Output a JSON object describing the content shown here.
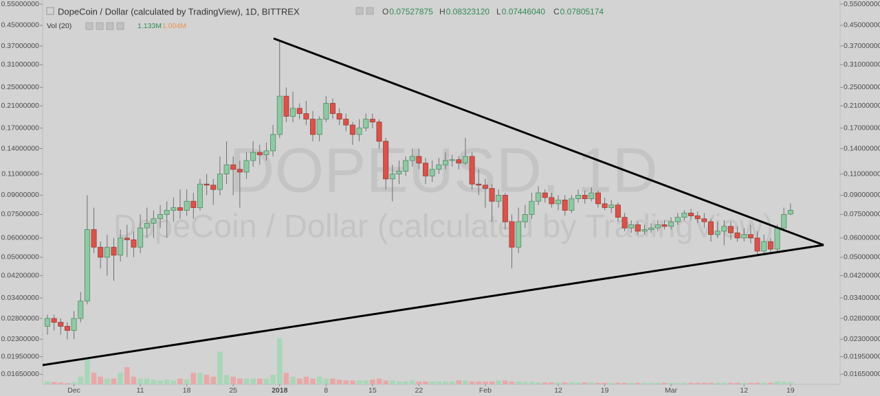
{
  "chart_data": {
    "type": "candlestick",
    "title": "DopeCoin / Dollar (calculated by TradingView), 1D, BITTREX",
    "watermark": "DOPEUSD, 1D",
    "watermark_subtitle": "DopeCoin / Dollar (calculated by TradingView)",
    "ohlc_prefixes": [
      "O",
      "H",
      "L",
      "C"
    ],
    "ohlc_labels": [
      "0.07527875",
      "0.08323120",
      "0.07446040",
      "0.07805174"
    ],
    "log_scale": true,
    "grid": false,
    "up_color": "#8fc9a3",
    "down_color": "#d9534a",
    "ylim": [
      0.015,
      0.572
    ],
    "yticks": [
      {
        "value": 0.55,
        "label": "0.55000000"
      },
      {
        "value": 0.45,
        "label": "0.45000000"
      },
      {
        "value": 0.37,
        "label": "0.37000000"
      },
      {
        "value": 0.31,
        "label": "0.31000000"
      },
      {
        "value": 0.25,
        "label": "0.25000000"
      },
      {
        "value": 0.21,
        "label": "0.21000000"
      },
      {
        "value": 0.17,
        "label": "0.17000000"
      },
      {
        "value": 0.14,
        "label": "0.14000000"
      },
      {
        "value": 0.11,
        "label": "0.11000000"
      },
      {
        "value": 0.09,
        "label": "0.09000000"
      },
      {
        "value": 0.075,
        "label": "0.07500000"
      },
      {
        "value": 0.06,
        "label": "0.06000000"
      },
      {
        "value": 0.05,
        "label": "0.05000000"
      },
      {
        "value": 0.042,
        "label": "0.04200000"
      },
      {
        "value": 0.034,
        "label": "0.03400000"
      },
      {
        "value": 0.028,
        "label": "0.02800000"
      },
      {
        "value": 0.023,
        "label": "0.02300000"
      },
      {
        "value": 0.0195,
        "label": "0.01950000"
      },
      {
        "value": 0.0165,
        "label": "0.01650000"
      }
    ],
    "categories": [
      null,
      null,
      null,
      null,
      "Dec",
      null,
      null,
      null,
      null,
      null,
      null,
      null,
      null,
      null,
      "11",
      null,
      null,
      null,
      null,
      null,
      null,
      "18",
      null,
      null,
      null,
      null,
      null,
      null,
      "25",
      null,
      null,
      null,
      null,
      null,
      null,
      "2018",
      null,
      null,
      null,
      null,
      null,
      null,
      "8",
      null,
      null,
      null,
      null,
      null,
      null,
      "15",
      null,
      null,
      null,
      null,
      null,
      null,
      "22",
      null,
      null,
      null,
      null,
      null,
      null,
      null,
      null,
      null,
      "Feb",
      null,
      null,
      null,
      null,
      null,
      null,
      null,
      null,
      null,
      null,
      "12",
      null,
      null,
      null,
      null,
      null,
      null,
      "19",
      null,
      null,
      null,
      null,
      null,
      null,
      null,
      null,
      null,
      "Mar",
      null,
      null,
      null,
      null,
      null,
      null,
      null,
      null,
      null,
      null,
      "12",
      null,
      null,
      null,
      null,
      null,
      null,
      "19"
    ],
    "candles": [
      [
        0.026,
        0.029,
        0.024,
        0.028
      ],
      [
        0.028,
        0.029,
        0.025,
        0.027
      ],
      [
        0.027,
        0.028,
        0.024,
        0.026
      ],
      [
        0.026,
        0.027,
        0.023,
        0.025
      ],
      [
        0.025,
        0.03,
        0.023,
        0.028
      ],
      [
        0.028,
        0.036,
        0.027,
        0.033
      ],
      [
        0.033,
        0.09,
        0.032,
        0.065
      ],
      [
        0.065,
        0.08,
        0.052,
        0.055
      ],
      [
        0.055,
        0.058,
        0.045,
        0.05
      ],
      [
        0.05,
        0.062,
        0.042,
        0.055
      ],
      [
        0.055,
        0.06,
        0.04,
        0.051
      ],
      [
        0.051,
        0.065,
        0.048,
        0.06
      ],
      [
        0.06,
        0.068,
        0.05,
        0.059
      ],
      [
        0.059,
        0.064,
        0.05,
        0.055
      ],
      [
        0.055,
        0.075,
        0.052,
        0.066
      ],
      [
        0.066,
        0.08,
        0.06,
        0.069
      ],
      [
        0.069,
        0.078,
        0.06,
        0.072
      ],
      [
        0.072,
        0.082,
        0.066,
        0.075
      ],
      [
        0.075,
        0.085,
        0.06,
        0.078
      ],
      [
        0.078,
        0.088,
        0.07,
        0.08
      ],
      [
        0.08,
        0.095,
        0.072,
        0.078
      ],
      [
        0.078,
        0.095,
        0.074,
        0.085
      ],
      [
        0.085,
        0.092,
        0.072,
        0.08
      ],
      [
        0.08,
        0.105,
        0.078,
        0.1
      ],
      [
        0.1,
        0.11,
        0.09,
        0.099
      ],
      [
        0.099,
        0.105,
        0.082,
        0.095
      ],
      [
        0.095,
        0.13,
        0.09,
        0.11
      ],
      [
        0.11,
        0.15,
        0.1,
        0.12
      ],
      [
        0.12,
        0.13,
        0.09,
        0.115
      ],
      [
        0.115,
        0.125,
        0.08,
        0.112
      ],
      [
        0.112,
        0.135,
        0.105,
        0.125
      ],
      [
        0.125,
        0.15,
        0.118,
        0.135
      ],
      [
        0.135,
        0.145,
        0.12,
        0.132
      ],
      [
        0.132,
        0.148,
        0.125,
        0.137
      ],
      [
        0.137,
        0.175,
        0.13,
        0.16
      ],
      [
        0.16,
        0.39,
        0.155,
        0.23
      ],
      [
        0.23,
        0.25,
        0.18,
        0.19
      ],
      [
        0.19,
        0.24,
        0.18,
        0.205
      ],
      [
        0.205,
        0.215,
        0.185,
        0.195
      ],
      [
        0.195,
        0.22,
        0.175,
        0.185
      ],
      [
        0.185,
        0.2,
        0.15,
        0.16
      ],
      [
        0.16,
        0.19,
        0.15,
        0.185
      ],
      [
        0.185,
        0.23,
        0.18,
        0.215
      ],
      [
        0.215,
        0.225,
        0.185,
        0.195
      ],
      [
        0.195,
        0.205,
        0.175,
        0.185
      ],
      [
        0.185,
        0.195,
        0.165,
        0.175
      ],
      [
        0.175,
        0.18,
        0.145,
        0.16
      ],
      [
        0.16,
        0.185,
        0.15,
        0.17
      ],
      [
        0.17,
        0.195,
        0.165,
        0.185
      ],
      [
        0.185,
        0.195,
        0.17,
        0.18
      ],
      [
        0.18,
        0.185,
        0.14,
        0.15
      ],
      [
        0.15,
        0.155,
        0.095,
        0.105
      ],
      [
        0.105,
        0.12,
        0.085,
        0.11
      ],
      [
        0.11,
        0.125,
        0.1,
        0.113
      ],
      [
        0.113,
        0.13,
        0.108,
        0.125
      ],
      [
        0.125,
        0.14,
        0.118,
        0.13
      ],
      [
        0.13,
        0.14,
        0.115,
        0.122
      ],
      [
        0.122,
        0.128,
        0.1,
        0.108
      ],
      [
        0.108,
        0.125,
        0.102,
        0.115
      ],
      [
        0.115,
        0.128,
        0.11,
        0.12
      ],
      [
        0.12,
        0.135,
        0.115,
        0.125
      ],
      [
        0.125,
        0.132,
        0.118,
        0.126
      ],
      [
        0.126,
        0.13,
        0.115,
        0.122
      ],
      [
        0.122,
        0.155,
        0.12,
        0.13
      ],
      [
        0.13,
        0.135,
        0.095,
        0.1
      ],
      [
        0.1,
        0.115,
        0.09,
        0.099
      ],
      [
        0.099,
        0.105,
        0.08,
        0.096
      ],
      [
        0.096,
        0.1,
        0.07,
        0.085
      ],
      [
        0.085,
        0.095,
        0.08,
        0.09
      ],
      [
        0.09,
        0.092,
        0.065,
        0.07
      ],
      [
        0.07,
        0.075,
        0.045,
        0.055
      ],
      [
        0.055,
        0.08,
        0.052,
        0.07
      ],
      [
        0.07,
        0.082,
        0.066,
        0.075
      ],
      [
        0.075,
        0.092,
        0.072,
        0.085
      ],
      [
        0.085,
        0.098,
        0.082,
        0.092
      ],
      [
        0.092,
        0.095,
        0.084,
        0.088
      ],
      [
        0.088,
        0.092,
        0.08,
        0.083
      ],
      [
        0.083,
        0.09,
        0.078,
        0.086
      ],
      [
        0.086,
        0.09,
        0.074,
        0.078
      ],
      [
        0.078,
        0.09,
        0.076,
        0.087
      ],
      [
        0.087,
        0.095,
        0.084,
        0.09
      ],
      [
        0.09,
        0.094,
        0.083,
        0.087
      ],
      [
        0.087,
        0.097,
        0.085,
        0.092
      ],
      [
        0.092,
        0.094,
        0.08,
        0.083
      ],
      [
        0.083,
        0.088,
        0.078,
        0.08
      ],
      [
        0.08,
        0.086,
        0.076,
        0.082
      ],
      [
        0.082,
        0.084,
        0.07,
        0.073
      ],
      [
        0.073,
        0.076,
        0.064,
        0.066
      ],
      [
        0.066,
        0.071,
        0.063,
        0.068
      ],
      [
        0.068,
        0.07,
        0.062,
        0.064
      ],
      [
        0.064,
        0.068,
        0.062,
        0.065
      ],
      [
        0.065,
        0.069,
        0.063,
        0.066
      ],
      [
        0.066,
        0.071,
        0.064,
        0.068
      ],
      [
        0.068,
        0.071,
        0.065,
        0.067
      ],
      [
        0.067,
        0.073,
        0.065,
        0.07
      ],
      [
        0.07,
        0.076,
        0.068,
        0.073
      ],
      [
        0.073,
        0.078,
        0.071,
        0.076
      ],
      [
        0.076,
        0.079,
        0.071,
        0.074
      ],
      [
        0.074,
        0.077,
        0.069,
        0.072
      ],
      [
        0.072,
        0.076,
        0.066,
        0.07
      ],
      [
        0.07,
        0.072,
        0.058,
        0.062
      ],
      [
        0.062,
        0.07,
        0.06,
        0.064
      ],
      [
        0.064,
        0.071,
        0.056,
        0.067
      ],
      [
        0.067,
        0.07,
        0.059,
        0.063
      ],
      [
        0.063,
        0.067,
        0.058,
        0.06
      ],
      [
        0.06,
        0.066,
        0.058,
        0.062
      ],
      [
        0.062,
        0.068,
        0.057,
        0.06
      ],
      [
        0.06,
        0.064,
        0.051,
        0.053
      ],
      [
        0.053,
        0.062,
        0.051,
        0.058
      ],
      [
        0.058,
        0.06,
        0.052,
        0.054
      ],
      [
        0.054,
        0.068,
        0.053,
        0.066
      ],
      [
        0.066,
        0.08,
        0.064,
        0.075
      ],
      [
        0.07527875,
        0.0832312,
        0.0744604,
        0.07805174
      ]
    ],
    "volume": {
      "name": "Vol (20)",
      "up_color": "#a9d6b8",
      "down_color": "#e8a8a8",
      "value_label": "1.133M",
      "ma_label": "1.004M",
      "ma_color": "#f0924a",
      "values": [
        1.5,
        1.2,
        0.9,
        0.6,
        1.1,
        4,
        14,
        6,
        4,
        3,
        3,
        6,
        9,
        4,
        3,
        3,
        2.5,
        2,
        2.5,
        2,
        3,
        2.5,
        6,
        6,
        5,
        4,
        17,
        5,
        4,
        3,
        3,
        3,
        3,
        3,
        5,
        24,
        6,
        4,
        3,
        4,
        3,
        4,
        3,
        3,
        2.5,
        2,
        2,
        2,
        2,
        2.5,
        3,
        2,
        2,
        1.5,
        1.5,
        2,
        1.5,
        1.5,
        1.5,
        1.5,
        1.5,
        1.5,
        2,
        2,
        1.5,
        1.5,
        1.5,
        1.5,
        2,
        2,
        1.5,
        1.5,
        1.2,
        1.2,
        1,
        1,
        1,
        1,
        1,
        1,
        1,
        1,
        1,
        0.8,
        0.8,
        0.8,
        0.8,
        0.8,
        0.8,
        0.8,
        0.8,
        0.8,
        0.8,
        0.8,
        0.8,
        0.8,
        0.8,
        0.8,
        0.8,
        0.8,
        0.8,
        0.8,
        0.8,
        0.8,
        0.8,
        0.8,
        0.8,
        0.8,
        0.8,
        0.8,
        1.5,
        1.3,
        1.133
      ]
    }
  }
}
